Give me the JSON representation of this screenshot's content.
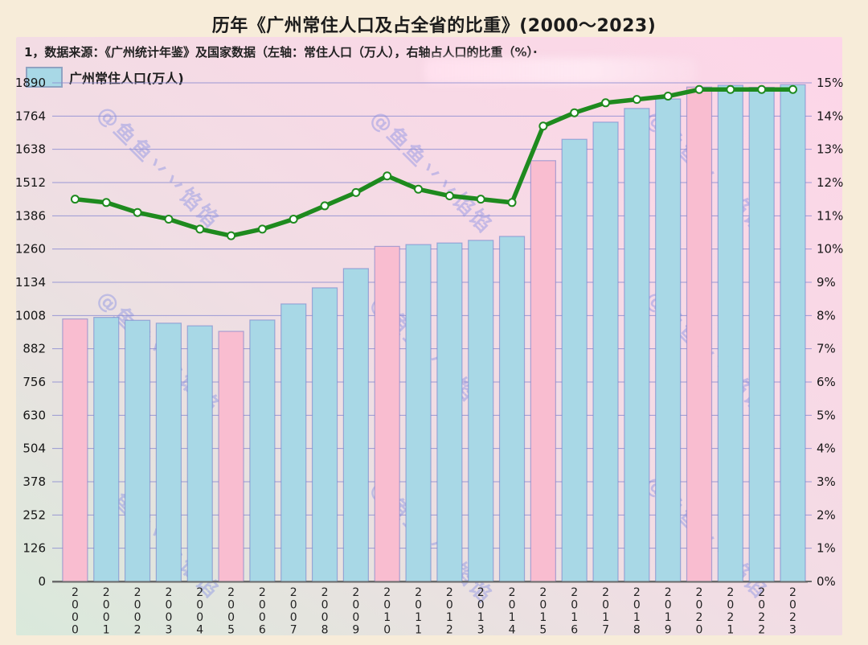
{
  "header": {
    "title": "历年《广州常住人口及占全省的比重》(2000～2023)"
  },
  "notes": {
    "source_line": "1，数据来源：《广州统计年鉴》及国家数据（左轴：常住人口（万人），右轴占人口的比重（%）·"
  },
  "legend": {
    "population_label": "广州常住人口(万人)"
  },
  "watermark": {
    "text": "@鱼鱼丷丷馅馅"
  },
  "colors": {
    "bar_blue": "#a8d8e6",
    "bar_pink": "#f9bdd0",
    "line_green": "#1e8a1e",
    "grid_purple": "#8c8cd2",
    "panel_pink": "#fbd7e7",
    "page_cream": "#f7ecd9"
  },
  "chart_data": {
    "type": "combo-bar-line",
    "title": "历年《广州常住人口及占全省的比重》(2000～2023)",
    "categories": [
      "2000",
      "2001",
      "2002",
      "2003",
      "2004",
      "2005",
      "2006",
      "2007",
      "2008",
      "2009",
      "2010",
      "2011",
      "2012",
      "2013",
      "2014",
      "2015",
      "2016",
      "2017",
      "2018",
      "2019",
      "2020",
      "2021",
      "2022",
      "2023"
    ],
    "series": [
      {
        "name": "广州常住人口(万人)",
        "type": "bar",
        "axis": "left",
        "values": [
          995,
          1001,
          990,
          979,
          969,
          948,
          991,
          1052,
          1113,
          1186,
          1270,
          1277,
          1283,
          1293,
          1308,
          1595,
          1676,
          1741,
          1793,
          1829,
          1874,
          1881,
          1873,
          1883
        ],
        "bar_color": "#a8d8e6",
        "highlight_color": "#f9bdd0",
        "highlight_categories": [
          "2000",
          "2005",
          "2010",
          "2015",
          "2020"
        ]
      },
      {
        "name": "占人口的比重(%)",
        "type": "line",
        "axis": "right",
        "values": [
          11.5,
          11.4,
          11.1,
          10.9,
          10.6,
          10.4,
          10.6,
          10.9,
          11.3,
          11.7,
          12.2,
          11.8,
          11.6,
          11.5,
          11.4,
          13.7,
          14.1,
          14.4,
          14.5,
          14.6,
          14.8,
          14.8,
          14.8,
          14.8
        ],
        "line_color": "#1e8a1e",
        "marker": "white-circle"
      }
    ],
    "left_axis": {
      "min": 0,
      "max": 1890,
      "step": 126,
      "tick_labels": [
        "0",
        "126",
        "252",
        "378",
        "504",
        "630",
        "756",
        "882",
        "1008",
        "1134",
        "1260",
        "1386",
        "1512",
        "1638",
        "1764",
        "1890"
      ]
    },
    "right_axis": {
      "min": 0,
      "max": 15,
      "step": 1,
      "tick_labels": [
        "0%",
        "1%",
        "2%",
        "3%",
        "4%",
        "5%",
        "6%",
        "7%",
        "8%",
        "9%",
        "10%",
        "11%",
        "12%",
        "13%",
        "14%",
        "15%"
      ]
    },
    "grid": true,
    "legend_position": "top-left"
  }
}
